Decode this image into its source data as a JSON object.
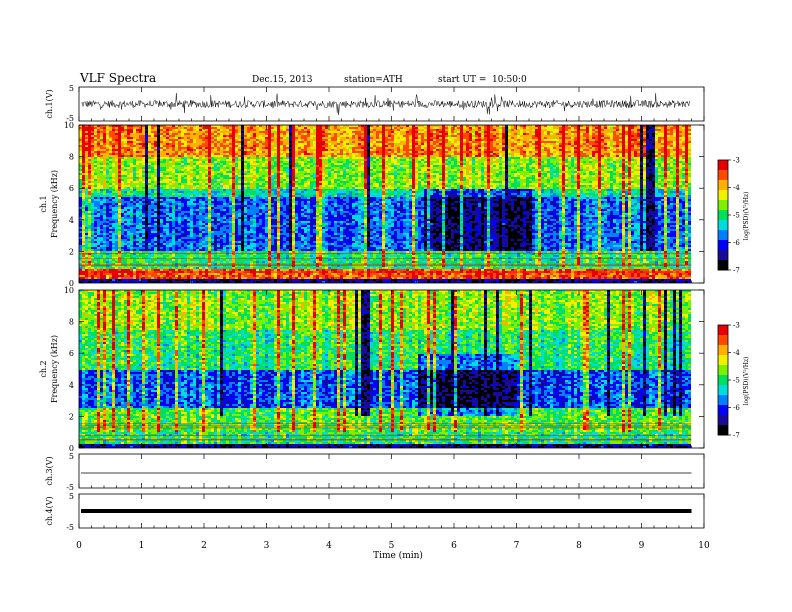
{
  "header": {
    "title": "VLF Spectra",
    "date": "Dec.15, 2013",
    "station": "station=ATH",
    "start": "start UT =",
    "start_time": "10:50:0"
  },
  "chart_data": [
    {
      "type": "line",
      "panel": "ch1-waveform",
      "ylabel": "ch.1(V)",
      "ylim": [
        -5,
        5
      ],
      "yticks": [
        "5",
        "-5"
      ],
      "series": [
        {
          "x": [
            0,
            1,
            2,
            3,
            4,
            5,
            5.5,
            6,
            7,
            8,
            9,
            9.8
          ],
          "values": [
            0.2,
            -0.1,
            0.3,
            0.1,
            -0.2,
            0.1,
            0.2,
            -0.1,
            0.1,
            0.2,
            0.0,
            0.1
          ],
          "note_type": "noisy, amplitude about 1.5 V with spikes to about 3 V"
        }
      ]
    },
    {
      "type": "heatmap",
      "panel": "ch1-spectrogram",
      "ylabel": "ch.1",
      "ylabel2": "Frequency (kHz)",
      "ylim": [
        0,
        10
      ],
      "yticks": [
        "0",
        "2",
        "4",
        "6",
        "8",
        "10"
      ],
      "colorbar": {
        "label": "log(PSD)(V²/Hz)",
        "ticks": [
          "-3",
          "-4",
          "-5",
          "-6",
          "-7"
        ],
        "range": [
          -7,
          -3
        ]
      },
      "bands": [
        {
          "f_low": 0.0,
          "f_high": 0.3,
          "log_psd": -6.5
        },
        {
          "f_low": 0.3,
          "f_high": 0.9,
          "log_psd": -3.5
        },
        {
          "f_low": 0.9,
          "f_high": 2.0,
          "log_psd": -5.0
        },
        {
          "f_low": 2.0,
          "f_high": 5.5,
          "log_psd": -5.8
        },
        {
          "f_low": 5.5,
          "f_high": 6.0,
          "log_psd": -5.2
        },
        {
          "f_low": 6.0,
          "f_high": 8.0,
          "log_psd": -4.6
        },
        {
          "f_low": 8.0,
          "f_high": 10.0,
          "log_psd": -3.8
        }
      ]
    },
    {
      "type": "heatmap",
      "panel": "ch2-spectrogram",
      "ylabel": "ch.2",
      "ylabel2": "Frequency (kHz)",
      "ylim": [
        0,
        10
      ],
      "yticks": [
        "0",
        "2",
        "4",
        "6",
        "8",
        "10"
      ],
      "colorbar": {
        "label": "log(PSD)(V²/Hz)",
        "ticks": [
          "-3",
          "-4",
          "-5",
          "-6",
          "-7"
        ],
        "range": [
          -7,
          -3
        ]
      },
      "bands": [
        {
          "f_low": 0.0,
          "f_high": 0.3,
          "log_psd": -6.5
        },
        {
          "f_low": 0.3,
          "f_high": 1.0,
          "log_psd": -5.0
        },
        {
          "f_low": 1.0,
          "f_high": 2.5,
          "log_psd": -4.8
        },
        {
          "f_low": 2.5,
          "f_high": 5.0,
          "log_psd": -5.9
        },
        {
          "f_low": 5.0,
          "f_high": 7.5,
          "log_psd": -5.0
        },
        {
          "f_low": 7.5,
          "f_high": 10.0,
          "log_psd": -4.6
        }
      ]
    },
    {
      "type": "line",
      "panel": "ch3-waveform",
      "ylabel": "ch.3(V)",
      "ylim": [
        -5,
        5
      ],
      "yticks": [
        "5",
        "-5"
      ],
      "series": [
        {
          "x": [
            0,
            9.8
          ],
          "values": [
            0.0,
            0.0
          ]
        }
      ]
    },
    {
      "type": "line",
      "panel": "ch4-waveform",
      "ylabel": "ch.4(V)",
      "ylim": [
        -5,
        5
      ],
      "yticks": [
        "5",
        "-5"
      ],
      "series": [
        {
          "x": [
            0,
            9.8
          ],
          "values": [
            0.0,
            0.0
          ]
        }
      ]
    }
  ],
  "xaxis": {
    "label": "Time (min)",
    "ticks": [
      "0",
      "1",
      "2",
      "3",
      "4",
      "5",
      "6",
      "7",
      "8",
      "9",
      "10"
    ],
    "xlim": [
      0,
      10
    ],
    "data_end": 9.8
  },
  "colors": {
    "colormap": [
      "#000000",
      "#1a0a9a",
      "#0000ff",
      "#0080ff",
      "#00dcdc",
      "#00e05a",
      "#7cf000",
      "#f0f000",
      "#ffb000",
      "#ff4800",
      "#e80000",
      "#ffffff"
    ]
  }
}
